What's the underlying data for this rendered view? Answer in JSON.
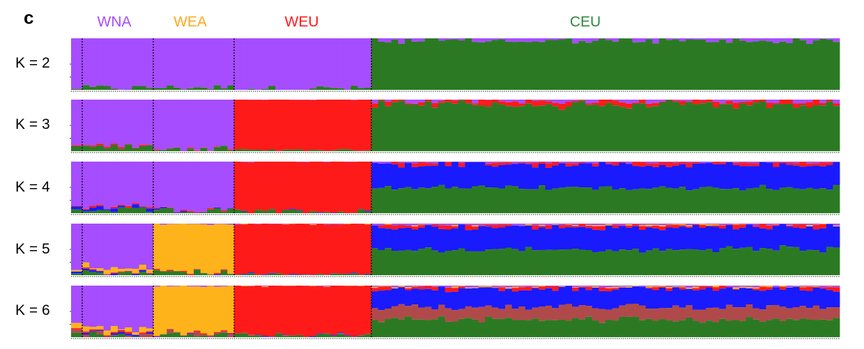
{
  "figure": {
    "panel_letter": "c"
  },
  "colors": {
    "purple": "#a64dff",
    "green": "#2b7a23",
    "red": "#ff1a1a",
    "blue": "#1a1aff",
    "orange": "#ffb31a",
    "brown": "#b04a4a",
    "WNA_label": "#a64dff",
    "WEA_label": "#ffa81f",
    "WEU_label": "#ff1a1a",
    "CEU_label": "#2b8a3e"
  },
  "chart_data": {
    "type": "bar",
    "stacked": true,
    "normalized_ylim": [
      0,
      1
    ],
    "populations": [
      {
        "name": "WNA",
        "n": 11
      },
      {
        "name": "WEA",
        "n": 12
      },
      {
        "name": "WEU",
        "n": 20
      },
      {
        "name": "CEU",
        "n": 70
      }
    ],
    "panels": [
      {
        "label": "K = 2",
        "components": [
          "purple",
          "green"
        ],
        "profiles": [
          {
            "pop": "WNA",
            "purple": 0.96,
            "green": 0.04
          },
          {
            "pop": "WEA",
            "purple": 0.95,
            "green": 0.05
          },
          {
            "pop": "WEU",
            "purple": 0.97,
            "green": 0.03
          },
          {
            "pop": "CEU",
            "purple": 0.05,
            "green": 0.95
          }
        ]
      },
      {
        "label": "K = 3",
        "components": [
          "purple",
          "red",
          "green"
        ],
        "profiles": [
          {
            "pop": "WNA",
            "purple": 0.9,
            "red": 0.02,
            "green": 0.08
          },
          {
            "pop": "WEA",
            "purple": 0.94,
            "red": 0.01,
            "green": 0.05
          },
          {
            "pop": "WEU",
            "purple": 0.0,
            "red": 0.98,
            "green": 0.02
          },
          {
            "pop": "CEU",
            "purple": 0.03,
            "red": 0.07,
            "green": 0.9
          }
        ]
      },
      {
        "label": "K = 4",
        "components": [
          "purple",
          "red",
          "blue",
          "green"
        ],
        "profiles": [
          {
            "pop": "WNA",
            "purple": 0.88,
            "red": 0.02,
            "blue": 0.04,
            "green": 0.06
          },
          {
            "pop": "WEA",
            "purple": 0.93,
            "red": 0.01,
            "blue": 0.01,
            "green": 0.05
          },
          {
            "pop": "WEU",
            "purple": 0.0,
            "red": 0.97,
            "blue": 0.0,
            "green": 0.03
          },
          {
            "pop": "CEU",
            "purple": 0.02,
            "red": 0.04,
            "blue": 0.45,
            "green": 0.49
          }
        ]
      },
      {
        "label": "K = 5",
        "components": [
          "purple",
          "orange",
          "red",
          "blue",
          "green"
        ],
        "profiles": [
          {
            "pop": "WNA",
            "purple": 0.85,
            "orange": 0.06,
            "red": 0.02,
            "blue": 0.02,
            "green": 0.05
          },
          {
            "pop": "WEA",
            "purple": 0.01,
            "orange": 0.93,
            "red": 0.01,
            "blue": 0.0,
            "green": 0.05
          },
          {
            "pop": "WEU",
            "purple": 0.0,
            "orange": 0.0,
            "red": 0.98,
            "blue": 0.0,
            "green": 0.02
          },
          {
            "pop": "CEU",
            "purple": 0.02,
            "orange": 0.01,
            "red": 0.04,
            "blue": 0.43,
            "green": 0.5
          }
        ]
      },
      {
        "label": "K = 6",
        "components": [
          "purple",
          "orange",
          "red",
          "blue",
          "brown",
          "green"
        ],
        "profiles": [
          {
            "pop": "WNA",
            "purple": 0.82,
            "orange": 0.07,
            "red": 0.02,
            "blue": 0.02,
            "brown": 0.03,
            "green": 0.04
          },
          {
            "pop": "WEA",
            "purple": 0.01,
            "orange": 0.9,
            "red": 0.01,
            "blue": 0.0,
            "brown": 0.04,
            "green": 0.04
          },
          {
            "pop": "WEU",
            "purple": 0.0,
            "orange": 0.0,
            "red": 0.97,
            "blue": 0.0,
            "brown": 0.0,
            "green": 0.03
          },
          {
            "pop": "CEU",
            "purple": 0.02,
            "orange": 0.01,
            "red": 0.03,
            "blue": 0.35,
            "brown": 0.25,
            "green": 0.34
          }
        ]
      }
    ],
    "axes": {
      "grid": false,
      "legend": "none"
    }
  }
}
